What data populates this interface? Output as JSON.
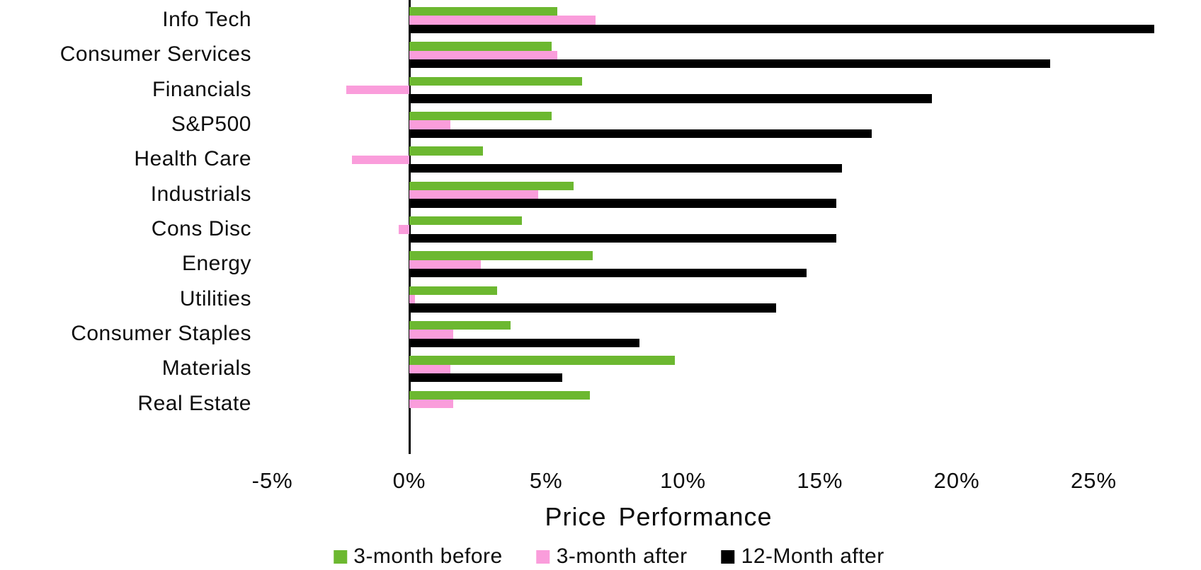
{
  "chart_data": {
    "type": "bar",
    "orientation": "horizontal",
    "title": "",
    "xlabel": "Price Performance",
    "ylabel": "",
    "grid": false,
    "legend_position": "bottom",
    "xlim": [
      -5,
      29
    ],
    "x_ticks": {
      "values": [
        -5,
        0,
        5,
        10,
        15,
        20,
        25
      ],
      "labels": [
        "-5%",
        "0%",
        "5%",
        "10%",
        "15%",
        "20%",
        "25%"
      ]
    },
    "categories": [
      "Info Tech",
      "Consumer Services",
      "Financials",
      "S&P500",
      "Health Care",
      "Industrials",
      "Cons Disc",
      "Energy",
      "Utilities",
      "Consumer Staples",
      "Materials",
      "Real Estate"
    ],
    "series": [
      {
        "name": "3-month before",
        "color": "#6CB830",
        "values": [
          5.4,
          5.2,
          6.3,
          5.2,
          2.7,
          6.0,
          4.1,
          6.7,
          3.2,
          3.7,
          9.7,
          6.6
        ]
      },
      {
        "name": "3-month after",
        "color": "#FA9DDB",
        "values": [
          6.8,
          5.4,
          -2.3,
          1.5,
          -2.1,
          4.7,
          -0.4,
          2.6,
          0.2,
          1.6,
          1.5,
          1.6
        ]
      },
      {
        "name": "12-Month after",
        "color": "#000000",
        "values": [
          27.2,
          23.4,
          19.1,
          16.9,
          15.8,
          15.6,
          15.6,
          14.5,
          13.4,
          8.4,
          5.6,
          0.0
        ]
      }
    ]
  }
}
